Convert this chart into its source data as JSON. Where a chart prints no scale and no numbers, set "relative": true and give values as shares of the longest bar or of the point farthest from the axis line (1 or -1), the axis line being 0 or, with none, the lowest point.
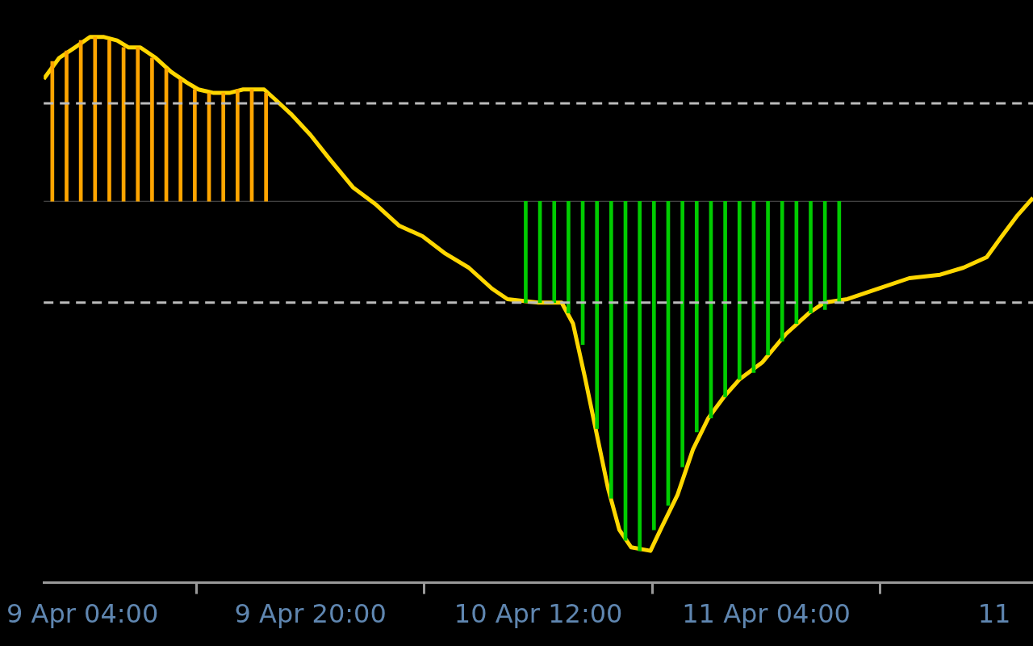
{
  "chart_data": {
    "type": "line",
    "relative": true,
    "grid": false,
    "legend": false,
    "tick_labels": "x",
    "xlim": [
      "--04-09T01:17",
      "--04-11T22:43"
    ],
    "xticks": [
      {
        "value": "--04-09T04:00",
        "label": "9 Apr 04:00"
      },
      {
        "value": "--04-09T20:00",
        "label": "9 Apr 20:00"
      },
      {
        "value": "--04-10T12:00",
        "label": "10 Apr 12:00"
      },
      {
        "value": "--04-11T04:00",
        "label": "11 Apr 04:00"
      },
      {
        "value": "--04-11T20:00",
        "label": "11"
      }
    ],
    "ref_lines": [
      {
        "axis": "y",
        "value": 0.28,
        "color": "#bbbbbb",
        "line_style": "dashed"
      },
      {
        "axis": "y",
        "value": -0.29,
        "color": "#bbbbbb",
        "line_style": "dashed"
      }
    ],
    "series": [
      {
        "type": "bar",
        "color": "#ffa500",
        "x": [
          "--04-09T02:00",
          "--04-09T03:00",
          "--04-09T04:00",
          "--04-09T05:00",
          "--04-09T06:00",
          "--04-09T07:00",
          "--04-09T08:00",
          "--04-09T09:00",
          "--04-09T10:00",
          "--04-09T11:00",
          "--04-09T12:00",
          "--04-09T13:00",
          "--04-09T14:00",
          "--04-09T15:00",
          "--04-09T16:00",
          "--04-09T17:00"
        ],
        "values": [
          0.4,
          0.43,
          0.46,
          0.47,
          0.46,
          0.44,
          0.44,
          0.41,
          0.38,
          0.35,
          0.32,
          0.31,
          0.31,
          0.32,
          0.32,
          0.31
        ]
      },
      {
        "type": "bar",
        "color": "#00cc00",
        "x": [
          "--04-10T11:00",
          "--04-10T12:00",
          "--04-10T13:00",
          "--04-10T14:00",
          "--04-10T15:00",
          "--04-10T16:00",
          "--04-10T17:00",
          "--04-10T18:00",
          "--04-10T19:00",
          "--04-10T20:00",
          "--04-10T21:00",
          "--04-10T22:00",
          "--04-10T23:00",
          "--04-11T00:00",
          "--04-11T01:00",
          "--04-11T02:00",
          "--04-11T03:00",
          "--04-11T04:00",
          "--04-11T05:00",
          "--04-11T06:00",
          "--04-11T07:00",
          "--04-11T08:00",
          "--04-11T09:00"
        ],
        "values": [
          -0.29,
          -0.29,
          -0.29,
          -0.32,
          -0.41,
          -0.65,
          -0.85,
          -0.97,
          -1,
          -0.94,
          -0.87,
          -0.76,
          -0.66,
          -0.62,
          -0.56,
          -0.51,
          -0.49,
          -0.44,
          -0.4,
          -0.35,
          -0.32,
          -0.31,
          -0.29
        ]
      },
      {
        "color": "#ffd700",
        "x": [
          "--04-09T01:17",
          "--04-09T02:22",
          "--04-09T03:28",
          "--04-09T04:32",
          "--04-09T05:31",
          "--04-09T06:26",
          "--04-09T07:15",
          "--04-09T08:04",
          "--04-09T09:09",
          "--04-09T10:14",
          "--04-09T11:19",
          "--04-09T12:08",
          "--04-09T13:13",
          "--04-09T14:19",
          "--04-09T15:17",
          "--04-09T16:45",
          "--04-09T17:34",
          "--04-09T18:38",
          "--04-09T20:00",
          "--04-09T21:22",
          "--04-09T22:59",
          "--04-10T00:37",
          "--04-10T02:14",
          "--04-10T03:52",
          "--04-10T05:29",
          "--04-10T07:07",
          "--04-10T08:45",
          "--04-10T09:50",
          "--04-10T12:00",
          "--04-10T13:38",
          "--04-10T14:26",
          "--04-10T15:15",
          "--04-10T16:04",
          "--04-10T16:53",
          "--04-10T17:41",
          "--04-10T18:31",
          "--04-10T19:52",
          "--04-10T20:41",
          "--04-10T21:46",
          "--04-10T22:51",
          "--04-10T23:56",
          "--04-11T01:01",
          "--04-11T02:06",
          "--04-11T03:44",
          "--04-11T05:22",
          "--04-11T06:59",
          "--04-11T08:04",
          "--04-11T09:41",
          "--04-11T11:52",
          "--04-11T14:02",
          "--04-11T16:12",
          "--04-11T17:50",
          "--04-11T19:28",
          "--04-11T20:32",
          "--04-11T21:38",
          "--04-11T22:43"
        ],
        "values": [
          0.35,
          0.41,
          0.44,
          0.47,
          0.47,
          0.46,
          0.44,
          0.44,
          0.41,
          0.37,
          0.34,
          0.32,
          0.31,
          0.31,
          0.32,
          0.32,
          0.29,
          0.25,
          0.19,
          0.12,
          0.04,
          -0.01,
          -0.07,
          -0.1,
          -0.15,
          -0.19,
          -0.25,
          -0.28,
          -0.29,
          -0.29,
          -0.35,
          -0.5,
          -0.66,
          -0.82,
          -0.94,
          -0.99,
          -1,
          -0.93,
          -0.84,
          -0.71,
          -0.62,
          -0.56,
          -0.51,
          -0.46,
          -0.38,
          -0.32,
          -0.29,
          -0.28,
          -0.25,
          -0.22,
          -0.21,
          -0.19,
          -0.16,
          -0.1,
          -0.04,
          0.01
        ]
      }
    ]
  }
}
